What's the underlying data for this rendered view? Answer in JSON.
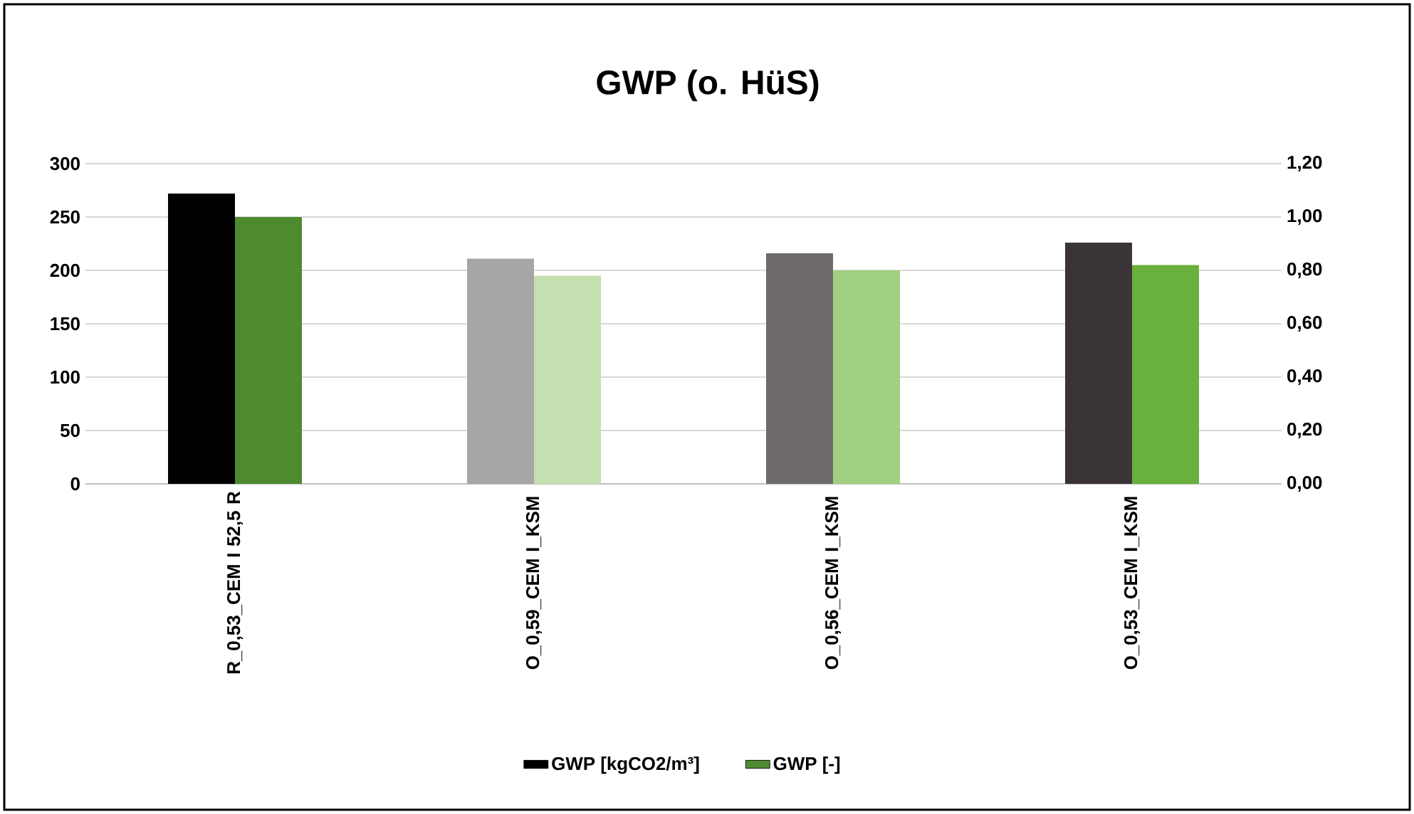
{
  "chart_data": {
    "type": "bar",
    "title": "GWP (o. HüS)",
    "categories": [
      "R_0,53_CEM I 52,5 R",
      "O_0,59_CEM I_KSM",
      "O_0,56_CEM I_KSM",
      "O_0,53_CEM I_KSM"
    ],
    "series": [
      {
        "name": "GWP [kgCO2/m³]",
        "color": "#000000",
        "colors": [
          "#000000",
          "#a6a6a6",
          "#6e6a6a",
          "#3a3438"
        ],
        "values": [
          272,
          211,
          216,
          226
        ]
      },
      {
        "name": "GWP [-]",
        "color": "#4e8a30",
        "colors": [
          "#4e8a30",
          "#c4dfb0",
          "#a0d080",
          "#6ab03c"
        ],
        "values": [
          1.0,
          0.78,
          0.8,
          0.82
        ],
        "axis": "y2"
      }
    ],
    "ylim": [
      0,
      300
    ],
    "yticks": [
      0,
      50,
      100,
      150,
      200,
      250,
      300
    ],
    "y2lim": [
      0,
      1.2
    ],
    "y2ticks": [
      {
        "value": 0,
        "label": "0,00"
      },
      {
        "value": 0.2,
        "label": "0,20"
      },
      {
        "value": 0.4,
        "label": "0,40"
      },
      {
        "value": 0.6,
        "label": "0,60"
      },
      {
        "value": 0.8,
        "label": "0,80"
      },
      {
        "value": 1.0,
        "label": "1,00"
      },
      {
        "value": 1.2,
        "label": "1,20"
      }
    ],
    "grid": "y",
    "legend": "bottom"
  }
}
